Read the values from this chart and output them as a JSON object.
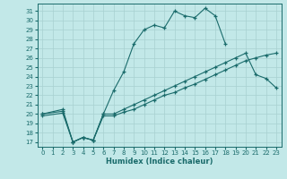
{
  "xlabel": "Humidex (Indice chaleur)",
  "background_color": "#c2e8e8",
  "grid_color": "#a8d0d0",
  "line_color": "#1a6b6b",
  "xlim": [
    -0.5,
    23.5
  ],
  "ylim": [
    16.5,
    31.8
  ],
  "xticks": [
    0,
    1,
    2,
    3,
    4,
    5,
    6,
    7,
    8,
    9,
    10,
    11,
    12,
    13,
    14,
    15,
    16,
    17,
    18,
    19,
    20,
    21,
    22,
    23
  ],
  "yticks": [
    17,
    18,
    19,
    20,
    21,
    22,
    23,
    24,
    25,
    26,
    27,
    28,
    29,
    30,
    31
  ],
  "curve1_x": [
    0,
    2,
    3,
    4,
    5,
    6,
    7,
    8,
    9,
    10,
    11,
    12,
    13,
    14,
    15,
    16,
    17,
    18
  ],
  "curve1_y": [
    20.0,
    20.5,
    17.0,
    17.5,
    17.2,
    20.0,
    22.5,
    24.5,
    27.5,
    29.0,
    29.5,
    29.2,
    31.0,
    30.5,
    30.3,
    31.3,
    30.5,
    27.5
  ],
  "curve2_x": [
    0,
    2,
    3,
    4,
    5,
    6,
    7,
    8,
    9,
    10,
    11,
    12,
    13,
    14,
    15,
    16,
    17,
    18,
    19,
    20,
    21,
    22,
    23
  ],
  "curve2_y": [
    20.0,
    20.3,
    17.0,
    17.5,
    17.2,
    20.0,
    20.0,
    20.5,
    21.0,
    21.5,
    22.0,
    22.5,
    23.0,
    23.5,
    24.0,
    24.5,
    25.0,
    25.5,
    26.0,
    26.5,
    24.2,
    23.8,
    22.8
  ],
  "curve3_x": [
    0,
    2,
    3,
    4,
    5,
    6,
    7,
    8,
    9,
    10,
    11,
    12,
    13,
    14,
    15,
    16,
    17,
    18,
    19,
    20,
    21,
    22,
    23
  ],
  "curve3_y": [
    19.8,
    20.1,
    17.0,
    17.5,
    17.2,
    19.8,
    19.8,
    20.2,
    20.5,
    21.0,
    21.5,
    22.0,
    22.3,
    22.8,
    23.2,
    23.7,
    24.2,
    24.7,
    25.2,
    25.7,
    26.0,
    26.3,
    26.5
  ]
}
